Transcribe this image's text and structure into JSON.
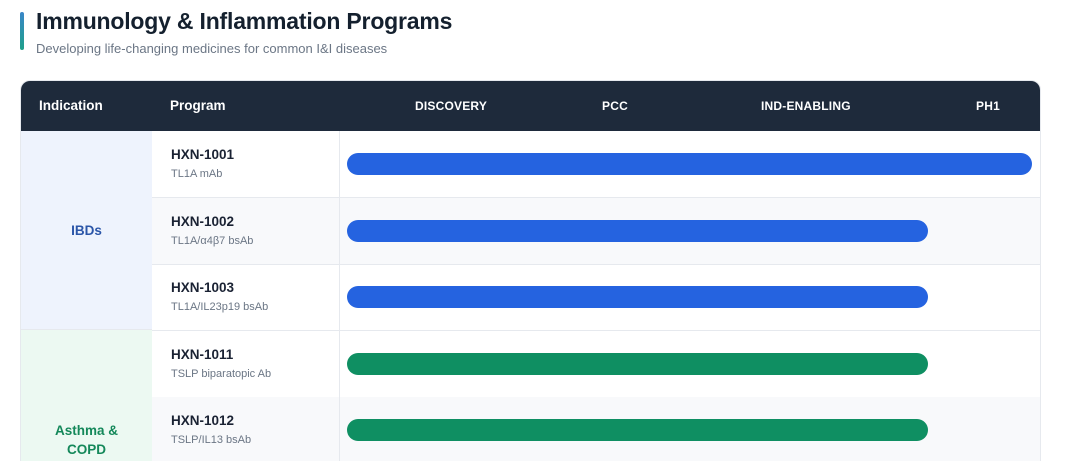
{
  "header": {
    "title": "Immunology & Inflammation Programs",
    "subtitle": "Developing life-changing medicines for common I&I diseases"
  },
  "columns": {
    "indication": "Indication",
    "program": "Program",
    "phases": [
      "DISCOVERY",
      "PCC",
      "IND-ENABLING",
      "PH1"
    ]
  },
  "colors": {
    "header_bg": "#1e2a3b",
    "ibd_bar": "#2563e0",
    "asthma_bar": "#0f8f62"
  },
  "indications": [
    {
      "label": "IBDs"
    },
    {
      "label": "Asthma &\nCOPD"
    }
  ],
  "programs": [
    {
      "name": "HXN-1001",
      "desc": "TL1A mAb",
      "progress": 1.0,
      "group": 0
    },
    {
      "name": "HXN-1002",
      "desc": "TL1A/α4β7 bsAb",
      "progress": 0.848,
      "group": 0
    },
    {
      "name": "HXN-1003",
      "desc": "TL1A/IL23p19 bsAb",
      "progress": 0.848,
      "group": 0
    },
    {
      "name": "HXN-1011",
      "desc": "TSLP biparatopic Ab",
      "progress": 0.848,
      "group": 1
    },
    {
      "name": "HXN-1012",
      "desc": "TSLP/IL13 bsAb",
      "progress": 0.848,
      "group": 1
    }
  ]
}
